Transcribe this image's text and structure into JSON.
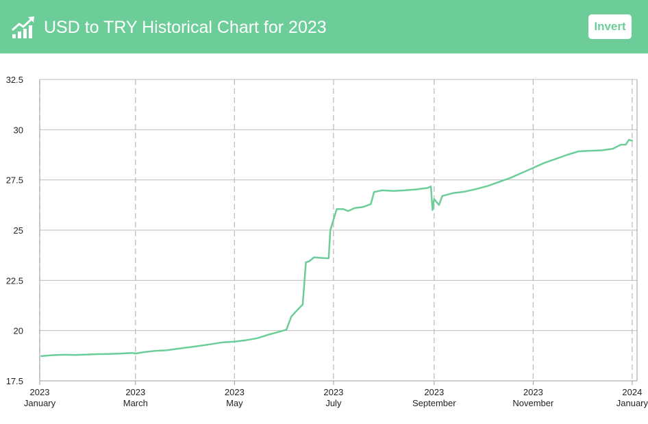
{
  "header": {
    "title": "USD to TRY Historical Chart for 2023",
    "invert_label": "Invert",
    "icon": "trending-up-chart-icon",
    "bg_color": "#6ccd98"
  },
  "chart_data": {
    "type": "line",
    "title": "USD to TRY Historical Chart for 2023",
    "xlabel": "",
    "ylabel": "",
    "ylim": [
      17.5,
      32.5
    ],
    "yticks": [
      17.5,
      20,
      22.5,
      25,
      27.5,
      30,
      32.5
    ],
    "ytick_labels": [
      "17.5",
      "20",
      "22.5",
      "25",
      "27.5",
      "30",
      "32.5"
    ],
    "xticks": [
      {
        "date": "2023-01-01",
        "year": "2023",
        "month": "January"
      },
      {
        "date": "2023-03-01",
        "year": "2023",
        "month": "March"
      },
      {
        "date": "2023-05-01",
        "year": "2023",
        "month": "May"
      },
      {
        "date": "2023-07-01",
        "year": "2023",
        "month": "July"
      },
      {
        "date": "2023-09-01",
        "year": "2023",
        "month": "September"
      },
      {
        "date": "2023-11-01",
        "year": "2023",
        "month": "November"
      },
      {
        "date": "2024-01-01",
        "year": "2024",
        "month": "January"
      }
    ],
    "xlim": [
      "2023-01-01",
      "2024-01-04"
    ],
    "grid": true,
    "line_color": "#6ccd98",
    "series": [
      {
        "values": [
          [
            "2023-01-02",
            18.73
          ],
          [
            "2023-01-09",
            18.78
          ],
          [
            "2023-01-16",
            18.8
          ],
          [
            "2023-01-23",
            18.79
          ],
          [
            "2023-01-30",
            18.81
          ],
          [
            "2023-02-06",
            18.83
          ],
          [
            "2023-02-13",
            18.84
          ],
          [
            "2023-02-20",
            18.86
          ],
          [
            "2023-02-27",
            18.89
          ],
          [
            "2023-03-01",
            18.86
          ],
          [
            "2023-03-06",
            18.93
          ],
          [
            "2023-03-13",
            18.99
          ],
          [
            "2023-03-20",
            19.02
          ],
          [
            "2023-03-27",
            19.1
          ],
          [
            "2023-04-03",
            19.17
          ],
          [
            "2023-04-10",
            19.25
          ],
          [
            "2023-04-17",
            19.33
          ],
          [
            "2023-04-24",
            19.42
          ],
          [
            "2023-05-01",
            19.45
          ],
          [
            "2023-05-08",
            19.52
          ],
          [
            "2023-05-15",
            19.62
          ],
          [
            "2023-05-22",
            19.8
          ],
          [
            "2023-05-29",
            19.95
          ],
          [
            "2023-06-02",
            20.05
          ],
          [
            "2023-06-05",
            20.7
          ],
          [
            "2023-06-09",
            21.05
          ],
          [
            "2023-06-12",
            21.3
          ],
          [
            "2023-06-14",
            23.4
          ],
          [
            "2023-06-16",
            23.45
          ],
          [
            "2023-06-19",
            23.65
          ],
          [
            "2023-06-23",
            23.62
          ],
          [
            "2023-06-28",
            23.6
          ],
          [
            "2023-06-29",
            25.0
          ],
          [
            "2023-07-03",
            26.05
          ],
          [
            "2023-07-07",
            26.05
          ],
          [
            "2023-07-10",
            25.95
          ],
          [
            "2023-07-14",
            26.1
          ],
          [
            "2023-07-19",
            26.15
          ],
          [
            "2023-07-24",
            26.3
          ],
          [
            "2023-07-26",
            26.9
          ],
          [
            "2023-07-31",
            26.98
          ],
          [
            "2023-08-07",
            26.95
          ],
          [
            "2023-08-14",
            26.98
          ],
          [
            "2023-08-21",
            27.03
          ],
          [
            "2023-08-28",
            27.1
          ],
          [
            "2023-08-30",
            27.18
          ],
          [
            "2023-08-31",
            26.0
          ],
          [
            "2023-09-01",
            26.55
          ],
          [
            "2023-09-04",
            26.25
          ],
          [
            "2023-09-06",
            26.7
          ],
          [
            "2023-09-13",
            26.85
          ],
          [
            "2023-09-20",
            26.92
          ],
          [
            "2023-09-27",
            27.05
          ],
          [
            "2023-10-04",
            27.2
          ],
          [
            "2023-10-11",
            27.4
          ],
          [
            "2023-10-18",
            27.6
          ],
          [
            "2023-10-25",
            27.85
          ],
          [
            "2023-11-01",
            28.1
          ],
          [
            "2023-11-08",
            28.35
          ],
          [
            "2023-11-15",
            28.55
          ],
          [
            "2023-11-22",
            28.75
          ],
          [
            "2023-11-29",
            28.92
          ],
          [
            "2023-12-06",
            28.95
          ],
          [
            "2023-12-13",
            28.97
          ],
          [
            "2023-12-20",
            29.05
          ],
          [
            "2023-12-25",
            29.25
          ],
          [
            "2023-12-28",
            29.25
          ],
          [
            "2023-12-30",
            29.5
          ],
          [
            "2024-01-01",
            29.45
          ]
        ]
      }
    ]
  }
}
